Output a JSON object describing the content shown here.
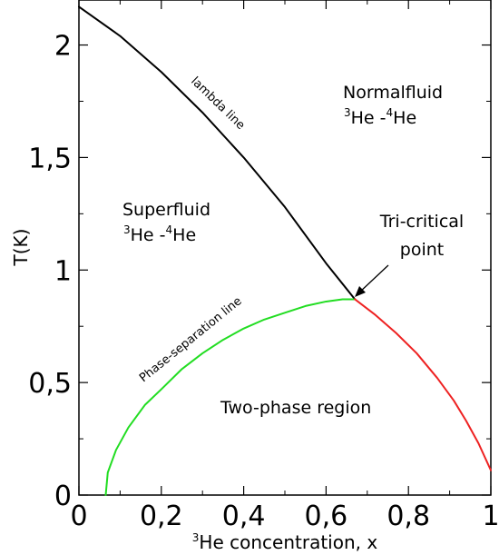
{
  "chart_data": {
    "type": "line",
    "x_axis": {
      "label_sup": "3",
      "label_main": "He concentration, x",
      "range": [
        0,
        1
      ],
      "ticks": [
        0,
        0.2,
        0.4,
        0.6,
        0.8,
        1
      ],
      "tick_labels": [
        "0",
        "0,2",
        "0,4",
        "0,6",
        "0,8",
        "1"
      ],
      "minor_ticks": [
        0.1,
        0.3,
        0.5,
        0.7,
        0.9
      ]
    },
    "y_axis": {
      "label": "T(K)",
      "range": [
        0,
        2.2
      ],
      "ticks": [
        0,
        0.5,
        1,
        1.5,
        2
      ],
      "tick_labels": [
        "0",
        "0,5",
        "1",
        "1,5",
        "2"
      ],
      "minor_ticks": [
        0.25,
        0.75,
        1.25,
        1.75
      ]
    },
    "grid": false,
    "series": [
      {
        "key": "lambda",
        "name": "lambda line",
        "color": "#000000",
        "x": [
          0,
          0.1,
          0.2,
          0.3,
          0.4,
          0.5,
          0.6,
          0.67
        ],
        "y": [
          2.17,
          2.04,
          1.88,
          1.7,
          1.5,
          1.28,
          1.03,
          0.87
        ]
      },
      {
        "key": "separation",
        "name": "Phase-separation line",
        "color": "#22dd22",
        "x": [
          0.065,
          0.07,
          0.09,
          0.12,
          0.16,
          0.2,
          0.25,
          0.3,
          0.35,
          0.4,
          0.45,
          0.5,
          0.55,
          0.6,
          0.64,
          0.67
        ],
        "y": [
          0,
          0.1,
          0.2,
          0.3,
          0.4,
          0.47,
          0.56,
          0.63,
          0.69,
          0.74,
          0.78,
          0.81,
          0.84,
          0.86,
          0.87,
          0.87
        ]
      },
      {
        "key": "red",
        "name": "",
        "color": "#ee2222",
        "x": [
          0.67,
          0.72,
          0.77,
          0.82,
          0.87,
          0.91,
          0.94,
          0.97,
          0.99,
          1.0
        ],
        "y": [
          0.87,
          0.8,
          0.72,
          0.63,
          0.52,
          0.42,
          0.33,
          0.23,
          0.15,
          0.11
        ]
      }
    ],
    "region_labels": {
      "normal_line1": "Normalfluid",
      "normal_line2": {
        "sup1": "3",
        "a": "He -",
        "sup2": "4",
        "b": "He"
      },
      "super_line1": "Superfluid",
      "super_line2": {
        "sup1": "3",
        "a": "He -",
        "sup2": "4",
        "b": "He"
      },
      "two_phase": "Two-phase region"
    },
    "annotation": {
      "line1": "Tri-critical",
      "line2": "point",
      "target_x": 0.67,
      "target_y": 0.87
    }
  }
}
